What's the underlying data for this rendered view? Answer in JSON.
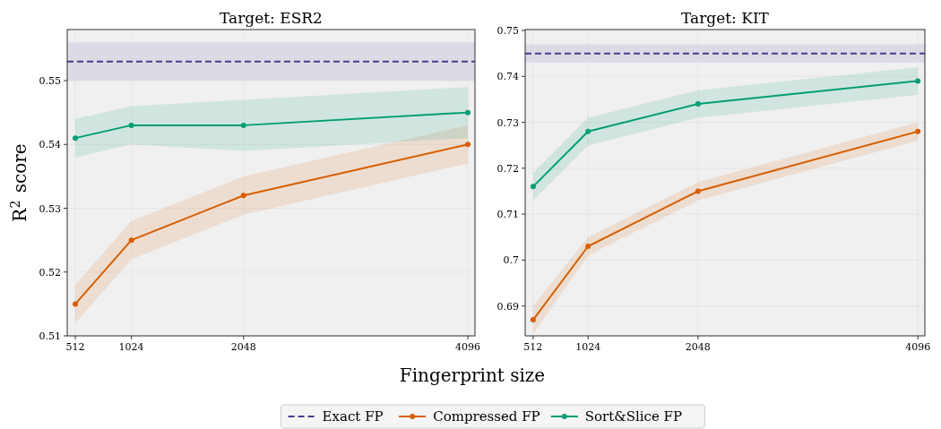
{
  "chart_data": [
    {
      "type": "line",
      "title": "Target: ESR2",
      "xlabel": "Fingerprint size",
      "ylabel": "R$^{2}$ score",
      "x": [
        512,
        1024,
        2048,
        4096
      ],
      "xlim": [
        438,
        4161
      ],
      "ylim": [
        0.51,
        0.558
      ],
      "xticks": [
        512,
        1024,
        2048,
        4096
      ],
      "yticks": [
        0.51,
        0.52,
        0.53,
        0.54,
        0.55
      ],
      "grid": true,
      "legend": "bottom",
      "marker": "circle",
      "ref_lines": [
        {
          "axis": "y",
          "value": 0.553,
          "label": "Exact FP",
          "color": "#483d8b",
          "line_style": "dashed"
        }
      ],
      "bands": [
        {
          "axis": "y",
          "from": 0.55,
          "to": 0.556,
          "color": "#d8d4e4"
        }
      ],
      "series": [
        {
          "name": "Compressed FP",
          "color": "#d55e00",
          "values": [
            0.515,
            0.525,
            0.532,
            0.54
          ],
          "lower": [
            0.512,
            0.522,
            0.529,
            0.537
          ],
          "upper": [
            0.518,
            0.528,
            0.535,
            0.543
          ]
        },
        {
          "name": "Sort&Slice FP",
          "color": "#009e73",
          "values": [
            0.541,
            0.543,
            0.543,
            0.545
          ],
          "lower": [
            0.538,
            0.54,
            0.539,
            0.541
          ],
          "upper": [
            0.544,
            0.546,
            0.547,
            0.549
          ]
        }
      ]
    },
    {
      "type": "line",
      "title": "Target: KIT",
      "x": [
        512,
        1024,
        2048,
        4096
      ],
      "xlim": [
        438,
        4161
      ],
      "ylim": [
        0.6835,
        0.7502
      ],
      "xticks": [
        512,
        1024,
        2048,
        4096
      ],
      "yticks": [
        0.69,
        0.7,
        0.71,
        0.72,
        0.73,
        0.74,
        0.75
      ],
      "grid": true,
      "legend": "bottom",
      "marker": "circle",
      "ref_lines": [
        {
          "axis": "y",
          "value": 0.745,
          "color": "#483d8b",
          "line_style": "dashed"
        }
      ],
      "bands": [
        {
          "axis": "y",
          "from": 0.743,
          "to": 0.747,
          "color": "#d8d4e4"
        }
      ],
      "series": [
        {
          "name": "Compressed FP",
          "color": "#d55e00",
          "values": [
            0.687,
            0.703,
            0.715,
            0.728
          ],
          "lower": [
            0.684,
            0.701,
            0.713,
            0.726
          ],
          "upper": [
            0.69,
            0.705,
            0.717,
            0.73
          ]
        },
        {
          "name": "Sort&Slice FP",
          "color": "#009e73",
          "values": [
            0.716,
            0.728,
            0.734,
            0.739
          ],
          "lower": [
            0.713,
            0.725,
            0.731,
            0.736
          ],
          "upper": [
            0.719,
            0.731,
            0.737,
            0.742
          ]
        }
      ]
    }
  ]
}
